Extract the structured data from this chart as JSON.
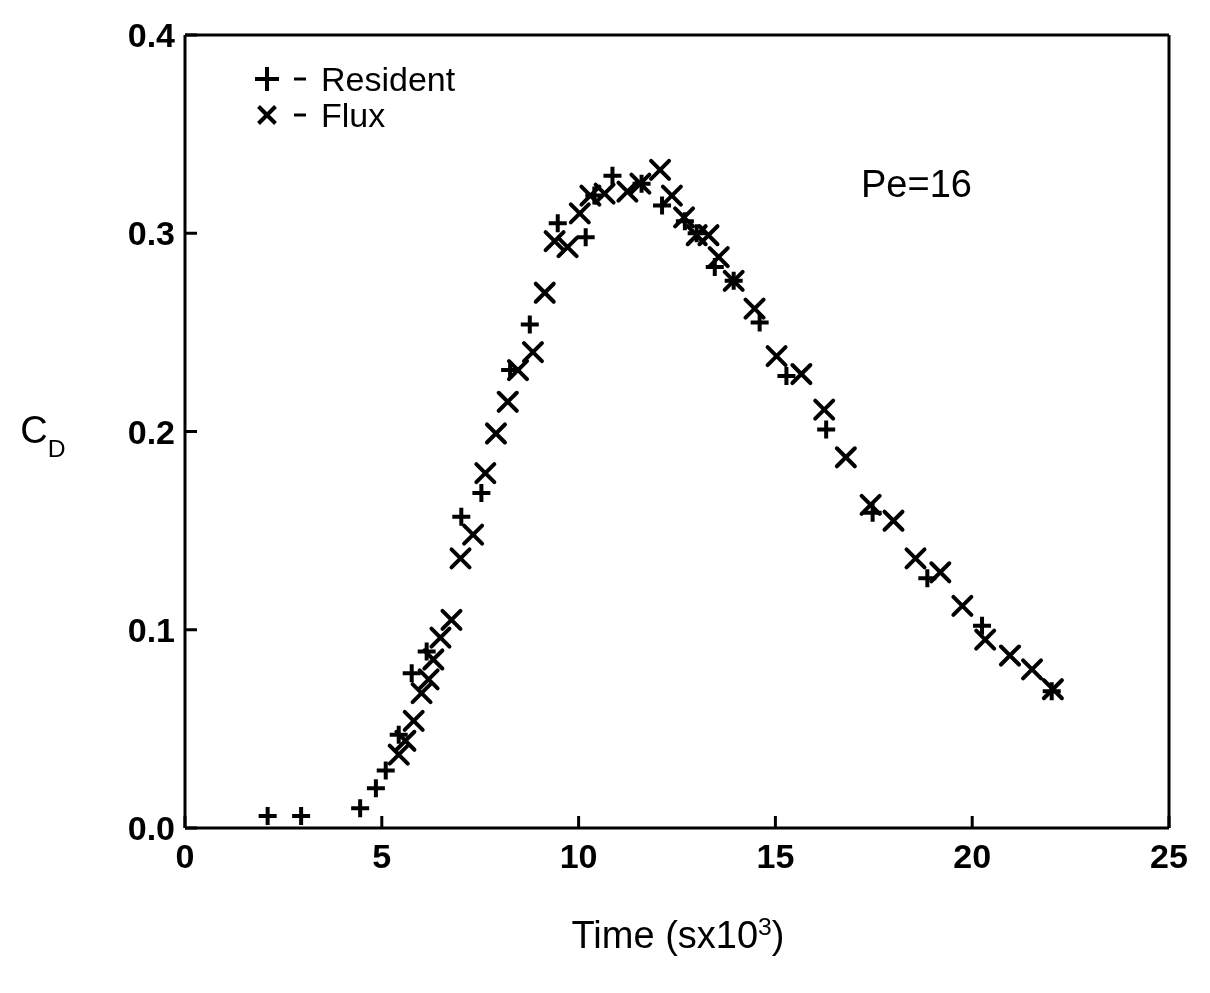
{
  "chart_data": {
    "type": "scatter",
    "xlabel": "Time (sx10$^{3}$)",
    "ylabel": "C$_{D}$",
    "xlim": [
      0,
      25
    ],
    "xticks": [
      0,
      5,
      10,
      15,
      20,
      25
    ],
    "ylim": [
      0,
      0.4
    ],
    "yticks": [
      {
        "value": 0,
        "label": "0.0"
      },
      0.1,
      0.2,
      0.3,
      0.4
    ],
    "legend": "top left",
    "annotations": [
      "Pe=16"
    ],
    "series": [
      {
        "name": "Resident",
        "color": "#000000",
        "marker": "plus",
        "x": [
          2.1,
          2.95,
          4.45,
          4.85,
          5.1,
          5.43,
          5.76,
          6.14,
          7.02,
          7.53,
          8.26,
          8.76,
          9.47,
          10.18,
          10.4,
          10.86,
          11.6,
          12.12,
          12.7,
          13.0,
          13.46,
          13.94,
          14.6,
          15.28,
          16.29,
          17.47,
          18.86,
          20.25,
          22.02
        ],
        "values": [
          0.006,
          0.006,
          0.01,
          0.02,
          0.029,
          0.047,
          0.078,
          0.089,
          0.157,
          0.169,
          0.231,
          0.254,
          0.305,
          0.298,
          0.319,
          0.329,
          0.325,
          0.314,
          0.306,
          0.3,
          0.283,
          0.276,
          0.255,
          0.228,
          0.201,
          0.159,
          0.126,
          0.102,
          0.069
        ]
      },
      {
        "name": "Flux",
        "color": "#000000",
        "marker": "cross",
        "x": [
          5.43,
          5.6,
          5.81,
          6.01,
          6.19,
          6.31,
          6.49,
          6.77,
          7.0,
          7.32,
          7.63,
          7.9,
          8.2,
          8.46,
          8.84,
          9.14,
          9.39,
          9.72,
          10.03,
          10.3,
          10.66,
          11.24,
          11.57,
          12.07,
          12.37,
          12.68,
          13.0,
          13.3,
          13.56,
          13.94,
          14.47,
          15.03,
          15.66,
          16.24,
          16.79,
          17.42,
          18.0,
          18.56,
          19.19,
          19.75,
          20.33,
          20.96,
          21.52,
          22.05
        ],
        "values": [
          0.037,
          0.044,
          0.054,
          0.068,
          0.075,
          0.085,
          0.096,
          0.105,
          0.136,
          0.148,
          0.179,
          0.199,
          0.215,
          0.231,
          0.24,
          0.27,
          0.296,
          0.293,
          0.31,
          0.319,
          0.32,
          0.321,
          0.325,
          0.332,
          0.319,
          0.308,
          0.299,
          0.299,
          0.288,
          0.276,
          0.262,
          0.238,
          0.229,
          0.211,
          0.187,
          0.163,
          0.155,
          0.136,
          0.129,
          0.112,
          0.095,
          0.087,
          0.08,
          0.07
        ]
      }
    ]
  }
}
